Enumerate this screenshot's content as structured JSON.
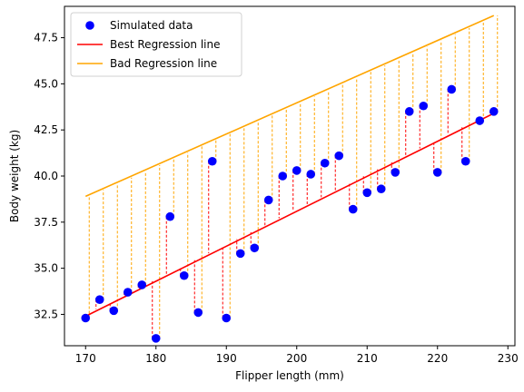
{
  "chart_data": {
    "type": "scatter",
    "title": "",
    "xlabel": "Flipper length (mm)",
    "ylabel": "Body weight (kg)",
    "xlim": [
      167,
      231
    ],
    "ylim": [
      30.8,
      49.2
    ],
    "xticks": [
      170,
      180,
      190,
      200,
      210,
      220,
      230
    ],
    "yticks": [
      32.5,
      35.0,
      37.5,
      40.0,
      42.5,
      45.0,
      47.5
    ],
    "ytick_labels": [
      "32.5",
      "35.0",
      "37.5",
      "40.0",
      "42.5",
      "45.0",
      "47.5"
    ],
    "grid": false,
    "legend_position": "top-left",
    "series": [
      {
        "name": "Simulated data",
        "kind": "scatter",
        "color": "#0000ff",
        "x": [
          170,
          172,
          174,
          176,
          178,
          180,
          182,
          184,
          186,
          188,
          190,
          192,
          194,
          196,
          198,
          200,
          202,
          204,
          206,
          208,
          210,
          212,
          214,
          216,
          218,
          220,
          222,
          224,
          226,
          228
        ],
        "y": [
          32.3,
          33.3,
          32.7,
          33.7,
          34.1,
          31.2,
          37.8,
          34.6,
          32.6,
          40.8,
          32.3,
          35.8,
          36.1,
          38.7,
          40.0,
          40.3,
          40.1,
          40.7,
          41.1,
          38.2,
          39.1,
          39.3,
          40.2,
          43.5,
          43.8,
          40.2,
          44.7,
          40.8,
          43.0,
          43.5
        ]
      },
      {
        "name": "Best Regression line",
        "kind": "line",
        "color": "#ff0000",
        "x": [
          170,
          228
        ],
        "y": [
          32.4,
          43.4
        ]
      },
      {
        "name": "Bad Regression line",
        "kind": "line",
        "color": "#ffa500",
        "x": [
          170,
          228
        ],
        "y": [
          38.9,
          48.7
        ]
      }
    ],
    "residual_colors": {
      "best": "#ff0000",
      "bad": "#ffa500"
    }
  }
}
